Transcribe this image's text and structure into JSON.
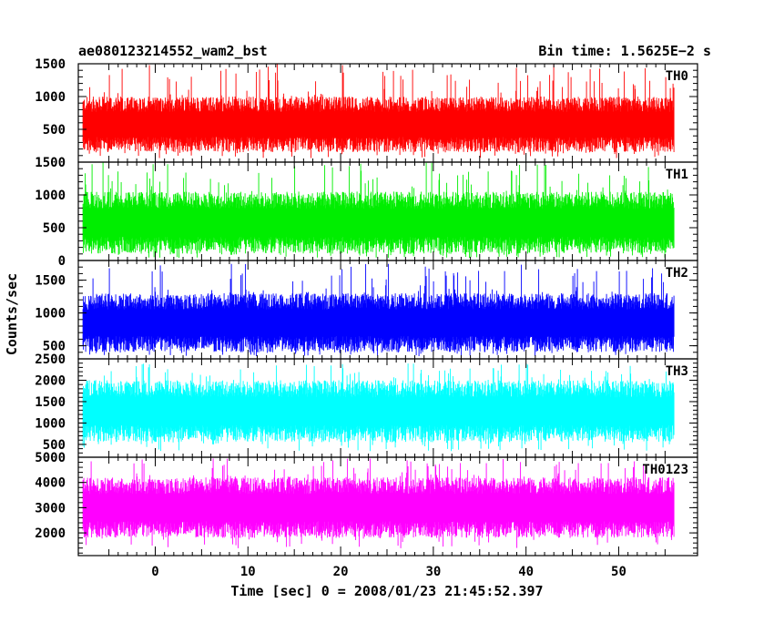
{
  "header": {
    "left_title": "ae080123214552_wam2_bst",
    "right_title": "Bin time: 1.5625E−2 s"
  },
  "chart_data": {
    "type": "line",
    "title": "ae080123214552_wam2_bst",
    "bin_time_label": "Bin time: 1.5625E−2 s",
    "xlabel": "Time [sec] 0 = 2008/01/23 21:45:52.397",
    "ylabel": "Counts/sec",
    "xlim": [
      -8.3,
      58.5
    ],
    "x_data_range": [
      -7.8,
      56.0
    ],
    "xticks": [
      0,
      10,
      20,
      30,
      40,
      50
    ],
    "xtick_labels": [
      "0",
      "10",
      "20",
      "30",
      "40",
      "50"
    ],
    "bin_time_s": 0.015625,
    "series": [
      {
        "name": "TH0",
        "color": "#ff0000",
        "ylim": [
          0,
          1500
        ],
        "yticks": [
          500,
          1000,
          1500
        ],
        "ytick_labels": [
          "500",
          "1000",
          "1500"
        ],
        "typical_min": 150,
        "typical_max": 1000,
        "spike_max": 1500
      },
      {
        "name": "TH1",
        "color": "#00ee00",
        "ylim": [
          0,
          1500
        ],
        "yticks": [
          0,
          500,
          1000,
          1500
        ],
        "ytick_labels": [
          "0",
          "500",
          "1000",
          "1500"
        ],
        "typical_min": 100,
        "typical_max": 1050,
        "spike_max": 1500
      },
      {
        "name": "TH2",
        "color": "#0000ff",
        "ylim": [
          300,
          1800
        ],
        "yticks": [
          500,
          1000,
          1500
        ],
        "ytick_labels": [
          "500",
          "1000",
          "1500"
        ],
        "typical_min": 400,
        "typical_max": 1300,
        "spike_max": 1750
      },
      {
        "name": "TH3",
        "color": "#00ffff",
        "ylim": [
          200,
          2500
        ],
        "yticks": [
          500,
          1000,
          1500,
          2000,
          2500
        ],
        "ytick_labels": [
          "500",
          "1000",
          "1500",
          "2000",
          "2500"
        ],
        "typical_min": 550,
        "typical_max": 2000,
        "spike_max": 2400
      },
      {
        "name": "TH0123",
        "color": "#ff00ff",
        "ylim": [
          1100,
          5000
        ],
        "yticks": [
          2000,
          3000,
          4000,
          5000
        ],
        "ytick_labels": [
          "2000",
          "3000",
          "4000",
          "5000"
        ],
        "typical_min": 1800,
        "typical_max": 4200,
        "spike_max": 4950
      }
    ]
  }
}
